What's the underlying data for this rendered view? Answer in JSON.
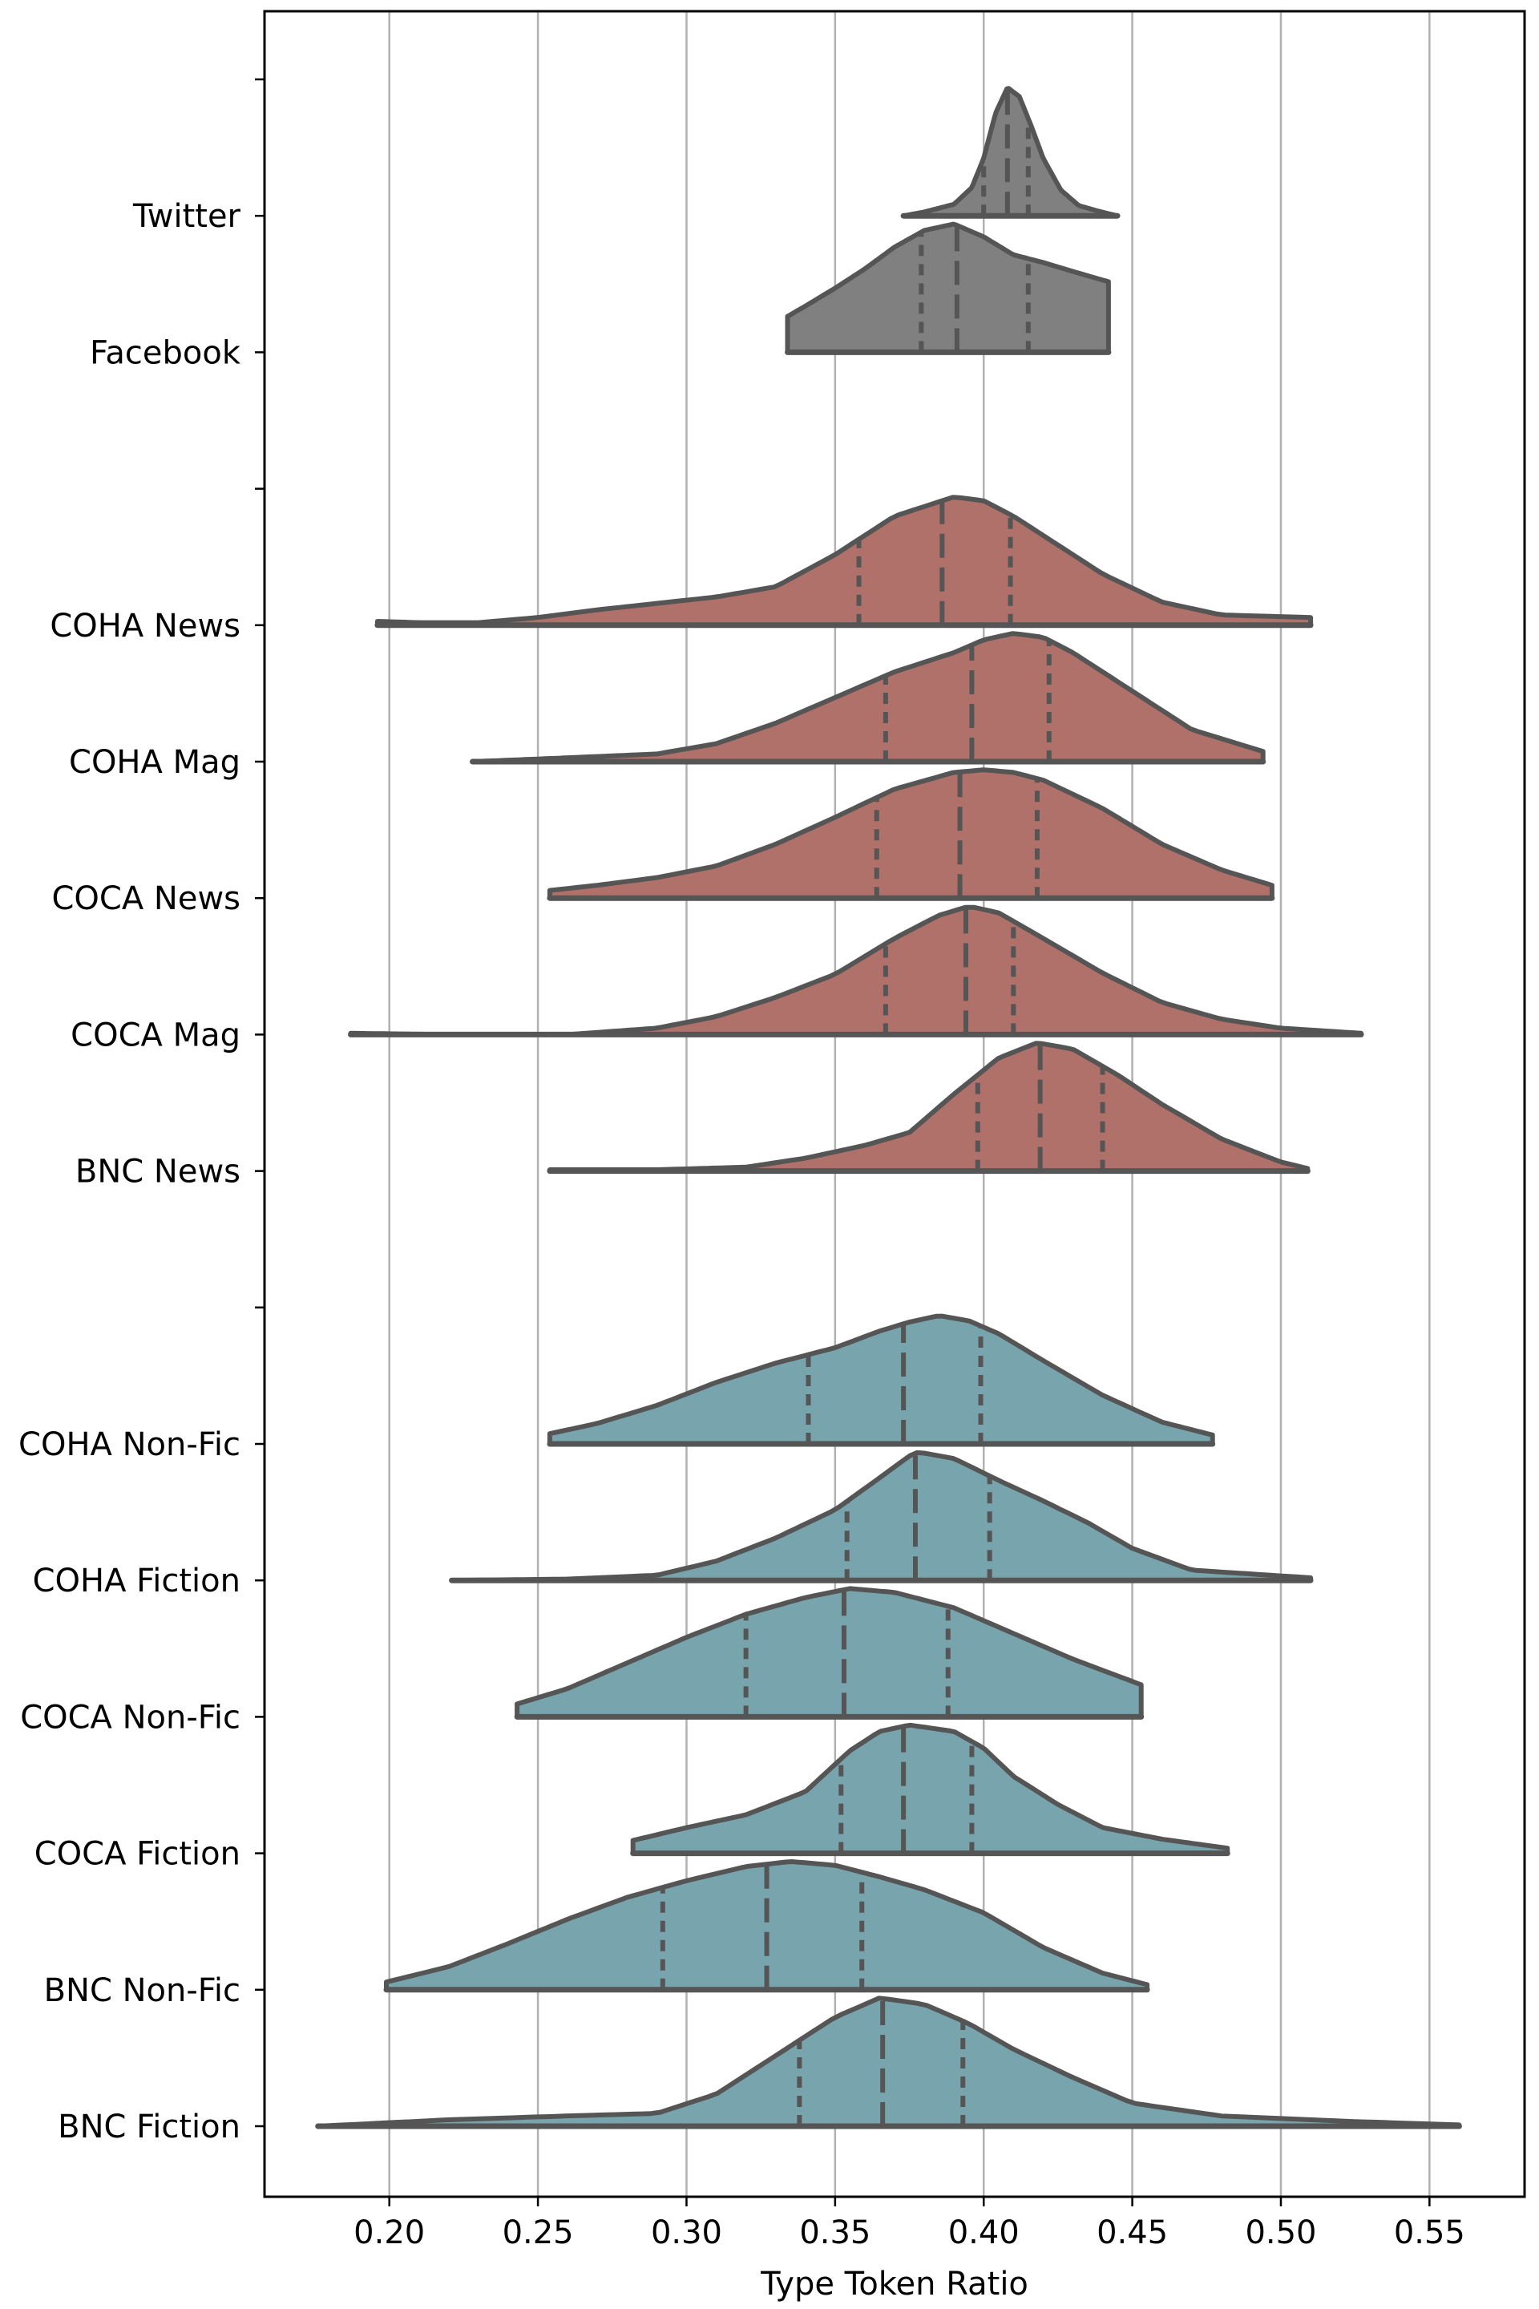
{
  "chart_data": {
    "type": "violin",
    "orientation": "horizontal",
    "xlabel": "Type Token Ratio",
    "xlim": [
      0.158,
      0.582
    ],
    "xticks": [
      0.2,
      0.25,
      0.3,
      0.35,
      0.4,
      0.45,
      0.5,
      0.55
    ],
    "xtick_labels": [
      "0.20",
      "0.25",
      "0.30",
      "0.35",
      "0.40",
      "0.45",
      "0.50",
      "0.55"
    ],
    "grid": "vertical",
    "colors": {
      "social": "#808080",
      "news_mag": "#b0716a",
      "books": "#78a5ad",
      "outline": "#555555",
      "grid": "#b0b0b0"
    },
    "rows": [
      {
        "label": "",
        "blank": true
      },
      {
        "label": "Twitter",
        "group": "social",
        "min": 0.373,
        "max": 0.445,
        "q1": 0.4,
        "median": 0.408,
        "q3": 0.415,
        "curve": [
          [
            0.373,
            0.0
          ],
          [
            0.38,
            0.03
          ],
          [
            0.39,
            0.09
          ],
          [
            0.396,
            0.22
          ],
          [
            0.4,
            0.45
          ],
          [
            0.404,
            0.8
          ],
          [
            0.408,
            1.0
          ],
          [
            0.412,
            0.93
          ],
          [
            0.416,
            0.7
          ],
          [
            0.42,
            0.45
          ],
          [
            0.426,
            0.2
          ],
          [
            0.432,
            0.08
          ],
          [
            0.438,
            0.04
          ],
          [
            0.445,
            0.0
          ]
        ]
      },
      {
        "label": "Facebook",
        "group": "social",
        "min": 0.334,
        "max": 0.442,
        "q1": 0.379,
        "median": 0.391,
        "q3": 0.415,
        "curve": [
          [
            0.334,
            0.28
          ],
          [
            0.34,
            0.36
          ],
          [
            0.35,
            0.5
          ],
          [
            0.36,
            0.65
          ],
          [
            0.37,
            0.82
          ],
          [
            0.38,
            0.95
          ],
          [
            0.39,
            1.0
          ],
          [
            0.4,
            0.9
          ],
          [
            0.41,
            0.76
          ],
          [
            0.42,
            0.7
          ],
          [
            0.43,
            0.63
          ],
          [
            0.442,
            0.55
          ]
        ]
      },
      {
        "label": "",
        "blank": true
      },
      {
        "label": "COHA News",
        "group": "news_mag",
        "min": 0.196,
        "max": 0.51,
        "q1": 0.358,
        "median": 0.386,
        "q3": 0.409,
        "curve": [
          [
            0.196,
            0.03
          ],
          [
            0.21,
            0.02
          ],
          [
            0.23,
            0.02
          ],
          [
            0.25,
            0.06
          ],
          [
            0.27,
            0.12
          ],
          [
            0.29,
            0.17
          ],
          [
            0.31,
            0.22
          ],
          [
            0.33,
            0.3
          ],
          [
            0.35,
            0.55
          ],
          [
            0.37,
            0.85
          ],
          [
            0.39,
            1.0
          ],
          [
            0.4,
            0.97
          ],
          [
            0.41,
            0.85
          ],
          [
            0.42,
            0.7
          ],
          [
            0.44,
            0.4
          ],
          [
            0.46,
            0.18
          ],
          [
            0.48,
            0.08
          ],
          [
            0.51,
            0.06
          ]
        ]
      },
      {
        "label": "COHA Mag",
        "group": "news_mag",
        "min": 0.228,
        "max": 0.494,
        "q1": 0.367,
        "median": 0.396,
        "q3": 0.422,
        "curve": [
          [
            0.228,
            0.0
          ],
          [
            0.26,
            0.03
          ],
          [
            0.29,
            0.06
          ],
          [
            0.31,
            0.14
          ],
          [
            0.33,
            0.3
          ],
          [
            0.35,
            0.5
          ],
          [
            0.37,
            0.7
          ],
          [
            0.39,
            0.85
          ],
          [
            0.4,
            0.95
          ],
          [
            0.41,
            1.0
          ],
          [
            0.42,
            0.97
          ],
          [
            0.43,
            0.85
          ],
          [
            0.45,
            0.55
          ],
          [
            0.47,
            0.25
          ],
          [
            0.494,
            0.08
          ]
        ]
      },
      {
        "label": "COCA News",
        "group": "news_mag",
        "min": 0.254,
        "max": 0.497,
        "q1": 0.364,
        "median": 0.392,
        "q3": 0.418,
        "curve": [
          [
            0.254,
            0.06
          ],
          [
            0.27,
            0.1
          ],
          [
            0.29,
            0.16
          ],
          [
            0.31,
            0.25
          ],
          [
            0.33,
            0.42
          ],
          [
            0.35,
            0.63
          ],
          [
            0.37,
            0.85
          ],
          [
            0.39,
            0.98
          ],
          [
            0.4,
            1.0
          ],
          [
            0.41,
            0.98
          ],
          [
            0.42,
            0.92
          ],
          [
            0.44,
            0.7
          ],
          [
            0.46,
            0.42
          ],
          [
            0.48,
            0.22
          ],
          [
            0.497,
            0.1
          ]
        ]
      },
      {
        "label": "COCA Mag",
        "group": "news_mag",
        "min": 0.187,
        "max": 0.527,
        "q1": 0.367,
        "median": 0.394,
        "q3": 0.41,
        "curve": [
          [
            0.187,
            0.01
          ],
          [
            0.22,
            0.0
          ],
          [
            0.26,
            0.0
          ],
          [
            0.29,
            0.05
          ],
          [
            0.31,
            0.14
          ],
          [
            0.33,
            0.29
          ],
          [
            0.35,
            0.47
          ],
          [
            0.37,
            0.75
          ],
          [
            0.385,
            0.93
          ],
          [
            0.395,
            1.0
          ],
          [
            0.405,
            0.95
          ],
          [
            0.42,
            0.75
          ],
          [
            0.44,
            0.48
          ],
          [
            0.46,
            0.25
          ],
          [
            0.48,
            0.12
          ],
          [
            0.5,
            0.05
          ],
          [
            0.527,
            0.01
          ]
        ]
      },
      {
        "label": "BNC News",
        "group": "news_mag",
        "min": 0.254,
        "max": 0.509,
        "q1": 0.398,
        "median": 0.419,
        "q3": 0.44,
        "curve": [
          [
            0.254,
            0.01
          ],
          [
            0.29,
            0.01
          ],
          [
            0.32,
            0.03
          ],
          [
            0.34,
            0.1
          ],
          [
            0.36,
            0.2
          ],
          [
            0.375,
            0.3
          ],
          [
            0.39,
            0.6
          ],
          [
            0.405,
            0.88
          ],
          [
            0.418,
            1.0
          ],
          [
            0.43,
            0.95
          ],
          [
            0.445,
            0.75
          ],
          [
            0.46,
            0.52
          ],
          [
            0.48,
            0.25
          ],
          [
            0.5,
            0.07
          ],
          [
            0.509,
            0.02
          ]
        ]
      },
      {
        "label": "",
        "blank": true
      },
      {
        "label": "COHA Non-Fic",
        "group": "books",
        "min": 0.254,
        "max": 0.477,
        "q1": 0.341,
        "median": 0.373,
        "q3": 0.399,
        "curve": [
          [
            0.254,
            0.08
          ],
          [
            0.27,
            0.16
          ],
          [
            0.29,
            0.3
          ],
          [
            0.31,
            0.48
          ],
          [
            0.33,
            0.63
          ],
          [
            0.35,
            0.75
          ],
          [
            0.365,
            0.88
          ],
          [
            0.375,
            0.95
          ],
          [
            0.385,
            1.0
          ],
          [
            0.395,
            0.96
          ],
          [
            0.405,
            0.86
          ],
          [
            0.42,
            0.65
          ],
          [
            0.44,
            0.38
          ],
          [
            0.46,
            0.17
          ],
          [
            0.477,
            0.07
          ]
        ]
      },
      {
        "label": "COHA Fiction",
        "group": "books",
        "min": 0.221,
        "max": 0.51,
        "q1": 0.354,
        "median": 0.377,
        "q3": 0.402,
        "curve": [
          [
            0.221,
            0.0
          ],
          [
            0.26,
            0.01
          ],
          [
            0.29,
            0.04
          ],
          [
            0.31,
            0.15
          ],
          [
            0.33,
            0.33
          ],
          [
            0.35,
            0.55
          ],
          [
            0.365,
            0.8
          ],
          [
            0.375,
            0.97
          ],
          [
            0.378,
            1.0
          ],
          [
            0.39,
            0.95
          ],
          [
            0.405,
            0.78
          ],
          [
            0.42,
            0.62
          ],
          [
            0.435,
            0.45
          ],
          [
            0.45,
            0.25
          ],
          [
            0.47,
            0.08
          ],
          [
            0.51,
            0.02
          ]
        ]
      },
      {
        "label": "COCA Non-Fic",
        "group": "books",
        "min": 0.243,
        "max": 0.453,
        "q1": 0.32,
        "median": 0.353,
        "q3": 0.388,
        "curve": [
          [
            0.243,
            0.1
          ],
          [
            0.26,
            0.22
          ],
          [
            0.28,
            0.42
          ],
          [
            0.3,
            0.62
          ],
          [
            0.32,
            0.8
          ],
          [
            0.34,
            0.93
          ],
          [
            0.355,
            1.0
          ],
          [
            0.37,
            0.97
          ],
          [
            0.39,
            0.85
          ],
          [
            0.41,
            0.65
          ],
          [
            0.43,
            0.45
          ],
          [
            0.453,
            0.25
          ]
        ]
      },
      {
        "label": "COCA Fiction",
        "group": "books",
        "min": 0.282,
        "max": 0.482,
        "q1": 0.352,
        "median": 0.373,
        "q3": 0.396,
        "curve": [
          [
            0.282,
            0.1
          ],
          [
            0.3,
            0.2
          ],
          [
            0.32,
            0.3
          ],
          [
            0.34,
            0.48
          ],
          [
            0.355,
            0.8
          ],
          [
            0.365,
            0.95
          ],
          [
            0.375,
            1.0
          ],
          [
            0.39,
            0.95
          ],
          [
            0.4,
            0.82
          ],
          [
            0.41,
            0.6
          ],
          [
            0.425,
            0.38
          ],
          [
            0.44,
            0.2
          ],
          [
            0.46,
            0.11
          ],
          [
            0.482,
            0.04
          ]
        ]
      },
      {
        "label": "BNC Non-Fic",
        "group": "books",
        "min": 0.199,
        "max": 0.455,
        "q1": 0.292,
        "median": 0.327,
        "q3": 0.359,
        "curve": [
          [
            0.199,
            0.06
          ],
          [
            0.22,
            0.18
          ],
          [
            0.24,
            0.36
          ],
          [
            0.26,
            0.55
          ],
          [
            0.28,
            0.72
          ],
          [
            0.3,
            0.85
          ],
          [
            0.32,
            0.96
          ],
          [
            0.335,
            1.0
          ],
          [
            0.35,
            0.97
          ],
          [
            0.365,
            0.88
          ],
          [
            0.38,
            0.78
          ],
          [
            0.4,
            0.6
          ],
          [
            0.42,
            0.33
          ],
          [
            0.44,
            0.13
          ],
          [
            0.455,
            0.04
          ]
        ]
      },
      {
        "label": "BNC Fiction",
        "group": "books",
        "min": 0.176,
        "max": 0.56,
        "q1": 0.338,
        "median": 0.366,
        "q3": 0.393,
        "curve": [
          [
            0.176,
            0.0
          ],
          [
            0.22,
            0.05
          ],
          [
            0.26,
            0.08
          ],
          [
            0.29,
            0.1
          ],
          [
            0.31,
            0.25
          ],
          [
            0.33,
            0.55
          ],
          [
            0.35,
            0.85
          ],
          [
            0.365,
            1.0
          ],
          [
            0.38,
            0.95
          ],
          [
            0.395,
            0.8
          ],
          [
            0.41,
            0.6
          ],
          [
            0.43,
            0.38
          ],
          [
            0.45,
            0.18
          ],
          [
            0.48,
            0.08
          ],
          [
            0.52,
            0.04
          ],
          [
            0.56,
            0.01
          ]
        ]
      }
    ]
  }
}
